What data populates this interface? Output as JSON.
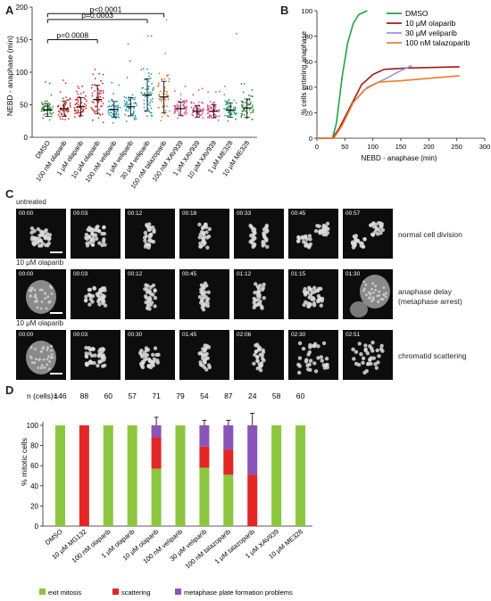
{
  "panels": {
    "a": {
      "letter": "A",
      "ylabel": "NEBD - anaphase (min)",
      "yticks": [
        "0",
        "50",
        "100",
        "150",
        "200"
      ],
      "categories": [
        "DMSO",
        "100 nM olaparib",
        "1 μM olaparib",
        "10 μM olaparib",
        "100 nM veliparib",
        "1 μM veliparib",
        "30 μM veliparib",
        "100 nM talazoparib",
        "100 nM XAV939",
        "1 μM XAV939",
        "10 μM XAV939",
        "1 μM ME328",
        "10 μM ME328"
      ],
      "colors": [
        "#2e8b3a",
        "#d62828",
        "#d62828",
        "#d62828",
        "#1e9bb0",
        "#1e9bb0",
        "#1e9bb0",
        "#e8762b",
        "#d94a8c",
        "#d94a8c",
        "#d94a8c",
        "#2fa37a",
        "#2e8b3a"
      ],
      "pvalues": [
        "p<0.0001",
        "p=0.0003",
        "p=0.0008"
      ]
    },
    "b": {
      "letter": "B",
      "ylabel": "% cells entering anaphase",
      "xlabel": "NEBD - anaphase (min)",
      "xticks": [
        "0",
        "50",
        "100",
        "150",
        "200",
        "250",
        "300"
      ],
      "yticks": [
        "0",
        "20",
        "40",
        "60",
        "80",
        "100"
      ]
    },
    "c": {
      "letter": "C",
      "rows": [
        {
          "label": "untreated",
          "times": [
            "00:00",
            "00:03",
            "00:12",
            "00:18",
            "00:33",
            "00:45",
            "00:57"
          ],
          "annotation": [
            "normal cell division"
          ]
        },
        {
          "label": "10 μM olaparib",
          "times": [
            "00:00",
            "00:03",
            "00:12",
            "00:45",
            "01:12",
            "01:15",
            "01:30"
          ],
          "annotation": [
            "anaphase delay",
            "(metaphase arrest)"
          ]
        },
        {
          "label": "10 μM olaparib",
          "times": [
            "00:00",
            "00:03",
            "00:30",
            "01:45",
            "02:06",
            "02:30",
            "02:51"
          ],
          "annotation": [
            "chromatid scattering"
          ]
        }
      ]
    },
    "d": {
      "letter": "D",
      "n_label": "n (cells)=",
      "ylabel": "% mitotic cells",
      "yticks": [
        "0",
        "20",
        "40",
        "60",
        "80",
        "100"
      ],
      "legend": [
        "exit mitosis",
        "scattering",
        "metaphase plate formation problems"
      ]
    }
  },
  "chart_data": [
    {
      "type": "scatter",
      "panel": "A",
      "ylabel": "NEBD - anaphase (min)",
      "ylim": [
        0,
        200
      ],
      "categories": [
        "DMSO",
        "100 nM olaparib",
        "1 μM olaparib",
        "10 μM olaparib",
        "100 nM veliparib",
        "1 μM veliparib",
        "30 μM veliparib",
        "100 nM talazoparib",
        "100 nM XAV939",
        "1 μM XAV939",
        "10 μM XAV939",
        "1 μM ME328",
        "10 μM ME328"
      ],
      "means": [
        42,
        44,
        47,
        58,
        43,
        47,
        65,
        62,
        44,
        40,
        40,
        42,
        45
      ],
      "sd": [
        10,
        12,
        14,
        22,
        12,
        14,
        25,
        24,
        10,
        9,
        10,
        11,
        14
      ],
      "maxima": [
        95,
        95,
        105,
        120,
        95,
        165,
        175,
        190,
        90,
        80,
        78,
        175,
        90
      ],
      "comparisons": [
        {
          "label": "p<0.0001",
          "from": "DMSO",
          "to": "100 nM talazoparib"
        },
        {
          "label": "p=0.0003",
          "from": "DMSO",
          "to": "30 μM veliparib"
        },
        {
          "label": "p=0.0008",
          "from": "DMSO",
          "to": "10 μM olaparib"
        }
      ]
    },
    {
      "type": "line",
      "panel": "B",
      "xlabel": "NEBD - anaphase (min)",
      "ylabel": "% cells entering anaphase",
      "xlim": [
        0,
        300
      ],
      "ylim": [
        0,
        100
      ],
      "legend_position": "top-right",
      "series": [
        {
          "name": "DMSO",
          "color": "#22a24a",
          "points": [
            [
              0,
              0
            ],
            [
              28,
              0
            ],
            [
              35,
              12
            ],
            [
              45,
              48
            ],
            [
              55,
              75
            ],
            [
              65,
              90
            ],
            [
              75,
              97
            ],
            [
              90,
              100
            ]
          ]
        },
        {
          "name": "10 μM olaparib",
          "color": "#a8161b",
          "points": [
            [
              0,
              0
            ],
            [
              28,
              0
            ],
            [
              40,
              8
            ],
            [
              60,
              25
            ],
            [
              80,
              42
            ],
            [
              100,
              50
            ],
            [
              120,
              54
            ],
            [
              160,
              55
            ],
            [
              255,
              56
            ]
          ]
        },
        {
          "name": "30 μM veliparib",
          "color": "#9b90d8",
          "points": [
            [
              0,
              0
            ],
            [
              30,
              0
            ],
            [
              45,
              10
            ],
            [
              65,
              28
            ],
            [
              90,
              40
            ],
            [
              120,
              46
            ],
            [
              150,
              53
            ],
            [
              170,
              57
            ]
          ]
        },
        {
          "name": "100 nM talazoparib",
          "color": "#f07c2a",
          "points": [
            [
              0,
              0
            ],
            [
              30,
              0
            ],
            [
              45,
              10
            ],
            [
              65,
              28
            ],
            [
              85,
              38
            ],
            [
              110,
              44
            ],
            [
              150,
              45
            ],
            [
              200,
              47
            ],
            [
              255,
              49
            ]
          ]
        }
      ]
    },
    {
      "type": "bar",
      "panel": "D",
      "ylabel": "% mitotic cells",
      "ylim": [
        0,
        100
      ],
      "categories": [
        "DMSO",
        "10 μM MG132",
        "100 nM olaparib",
        "1 μM olaparib",
        "10 μM olaparib",
        "100 nM veliparib",
        "30 μM veliparib",
        "100 nM talazoparib",
        "1 μM talazoparib",
        "1 μM XAV939",
        "10 μM ME328"
      ],
      "n": [
        "146",
        "88",
        "60",
        "57",
        "71",
        "79",
        "54",
        "87",
        "24",
        "58",
        "60"
      ],
      "series": [
        {
          "name": "exit mitosis",
          "color": "#8cc63f",
          "values": [
            100,
            0,
            100,
            100,
            57,
            100,
            58,
            51,
            0,
            100,
            100
          ]
        },
        {
          "name": "scattering",
          "color": "#e32626",
          "values": [
            0,
            100,
            0,
            0,
            31,
            0,
            21,
            25,
            51,
            0,
            0
          ]
        },
        {
          "name": "metaphase plate formation problems",
          "color": "#8a55b8",
          "values": [
            0,
            0,
            0,
            0,
            12,
            0,
            21,
            24,
            49,
            0,
            0
          ]
        }
      ],
      "error_tops": [
        0,
        0,
        0,
        0,
        8,
        0,
        5,
        5,
        12,
        0,
        0
      ]
    }
  ]
}
